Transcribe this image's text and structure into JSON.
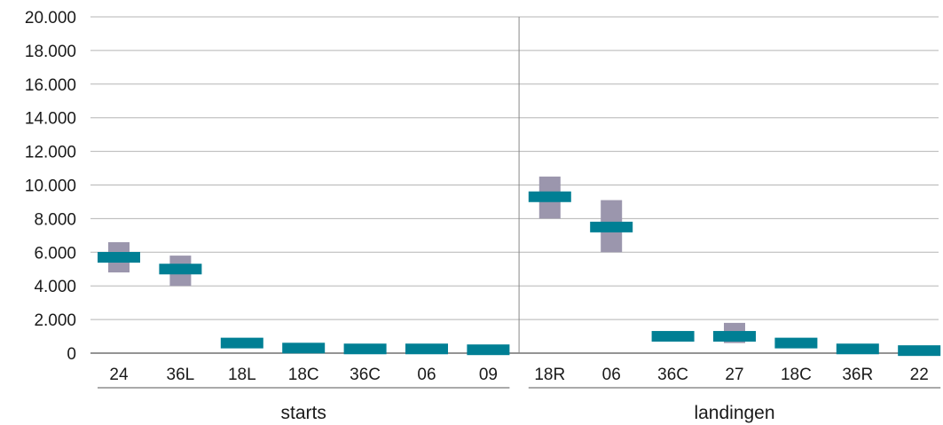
{
  "chart_data": {
    "type": "range",
    "ylim": [
      0,
      20000
    ],
    "yticks": [
      "0",
      "2.000",
      "4.000",
      "6.000",
      "8.000",
      "10.000",
      "12.000",
      "14.000",
      "16.000",
      "18.000",
      "20.000"
    ],
    "ytick_values": [
      0,
      2000,
      4000,
      6000,
      8000,
      10000,
      12000,
      14000,
      16000,
      18000,
      20000
    ],
    "grid": true,
    "groups": [
      {
        "label": "starts",
        "categories": [
          "24",
          "36L",
          "18L",
          "18C",
          "36C",
          "06",
          "09"
        ],
        "range_low": [
          4800,
          4000,
          null,
          null,
          null,
          null,
          null
        ],
        "range_high": [
          6600,
          5800,
          null,
          null,
          null,
          null,
          null
        ],
        "value": [
          5700,
          5000,
          600,
          300,
          250,
          250,
          200
        ]
      },
      {
        "label": "landingen",
        "categories": [
          "18R",
          "06",
          "36C",
          "27",
          "18C",
          "36R",
          "22"
        ],
        "range_low": [
          8000,
          6000,
          null,
          600,
          null,
          null,
          null
        ],
        "range_high": [
          10500,
          9100,
          null,
          1800,
          null,
          null,
          null
        ],
        "value": [
          9300,
          7500,
          1000,
          1000,
          600,
          250,
          150
        ]
      }
    ],
    "colors": {
      "range": "#9b96ad",
      "value": "#007f94",
      "grid": "#b5b5b5",
      "axis": "#555555",
      "divider": "#888888"
    }
  }
}
